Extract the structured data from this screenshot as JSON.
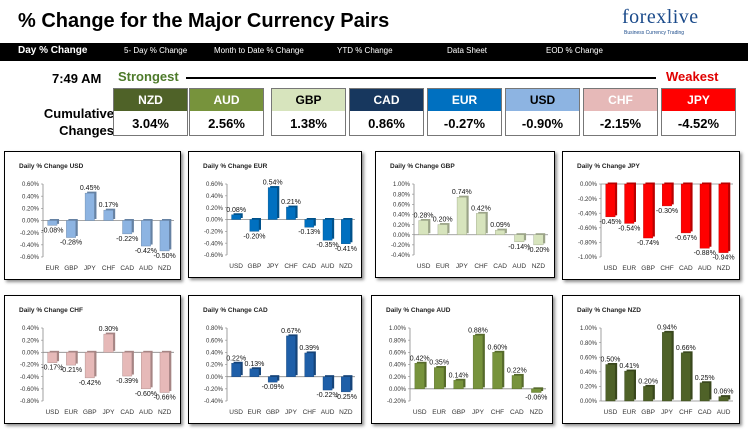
{
  "header": {
    "title": "% Change for the Major Currency Pairs",
    "logo": "forexlive",
    "logo_tagline": "Business Currency Trading"
  },
  "nav": {
    "items": [
      "Day % Change",
      "5- Day % Change",
      "Month to Date % Change",
      "YTD % Change",
      "Data Sheet",
      "EOD % Change"
    ]
  },
  "summary": {
    "time": "7:49 AM",
    "strongest_label": "Strongest",
    "weakest_label": "Weakest",
    "cumulative_label_1": "Cumulative",
    "cumulative_label_2": "Changes",
    "tiles": [
      {
        "currency": "NZD",
        "value": "3.04%",
        "color": "#4f6228",
        "text_color": "#ffffff"
      },
      {
        "currency": "AUD",
        "value": "2.56%",
        "color": "#77933c",
        "text_color": "#ffffff"
      },
      {
        "currency": "GBP",
        "value": "1.38%",
        "color": "#d7e4bd",
        "text_color": "#000000"
      },
      {
        "currency": "CAD",
        "value": "0.86%",
        "color": "#17375e",
        "text_color": "#ffffff"
      },
      {
        "currency": "EUR",
        "value": "-0.27%",
        "color": "#0070c0",
        "text_color": "#ffffff"
      },
      {
        "currency": "USD",
        "value": "-0.90%",
        "color": "#8db4e2",
        "text_color": "#000000"
      },
      {
        "currency": "CHF",
        "value": "-2.15%",
        "color": "#e6b9b8",
        "text_color": "#ffffff"
      },
      {
        "currency": "JPY",
        "value": "-4.52%",
        "color": "#ff0000",
        "text_color": "#ffffff"
      }
    ]
  },
  "chart_data": [
    {
      "type": "bar",
      "title": "Daily % Change USD",
      "categories": [
        "EUR",
        "GBP",
        "JPY",
        "CHF",
        "CAD",
        "AUD",
        "NZD"
      ],
      "values": [
        -0.08,
        -0.28,
        0.45,
        0.17,
        -0.22,
        -0.42,
        -0.5
      ],
      "labels": [
        "-0.08%",
        "-0.28%",
        "0.45%",
        "0.17%",
        "-0.22%",
        "-0.42%",
        "-0.50%"
      ],
      "ylim": [
        -0.6,
        0.6
      ],
      "ticks": [
        "0.60%",
        "0.40%",
        "0.20%",
        "0.00%",
        "-0.20%",
        "-0.40%",
        "-0.60%"
      ],
      "color": "#8db4e2",
      "grid": false
    },
    {
      "type": "bar",
      "title": "Daily % Change EUR",
      "categories": [
        "USD",
        "GBP",
        "JPY",
        "CHF",
        "CAD",
        "AUD",
        "NZD"
      ],
      "values": [
        0.08,
        -0.2,
        0.54,
        0.21,
        -0.13,
        -0.35,
        -0.41
      ],
      "labels": [
        "0.08%",
        "-0.20%",
        "0.54%",
        "0.21%",
        "-0.13%",
        "-0.35%",
        "-0.41%"
      ],
      "ylim": [
        -0.6,
        0.6
      ],
      "ticks": [
        "0.60%",
        "0.40%",
        "0.20%",
        "0.00%",
        "-0.20%",
        "-0.40%",
        "-0.60%"
      ],
      "color": "#0070c0",
      "grid": false
    },
    {
      "type": "bar",
      "title": "Daily % Change GBP",
      "categories": [
        "USD",
        "EUR",
        "JPY",
        "CHF",
        "CAD",
        "AUD",
        "NZD"
      ],
      "values": [
        0.28,
        0.2,
        0.74,
        0.42,
        0.09,
        -0.14,
        -0.2
      ],
      "labels": [
        "0.28%",
        "0.20%",
        "0.74%",
        "0.42%",
        "0.09%",
        "-0.14%",
        "-0.20%"
      ],
      "ylim": [
        -0.4,
        1.0
      ],
      "ticks": [
        "1.00%",
        "0.80%",
        "0.60%",
        "0.40%",
        "0.20%",
        "0.00%",
        "-0.20%",
        "-0.40%"
      ],
      "color": "#d7e4bd",
      "grid": false
    },
    {
      "type": "bar",
      "title": "Daily % Change JPY",
      "categories": [
        "USD",
        "EUR",
        "GBP",
        "CHF",
        "CAD",
        "AUD",
        "NZD"
      ],
      "values": [
        -0.45,
        -0.54,
        -0.74,
        -0.3,
        -0.67,
        -0.88,
        -0.94
      ],
      "labels": [
        "-0.45%",
        "-0.54%",
        "-0.74%",
        "-0.30%",
        "-0.67%",
        "-0.88%",
        "-0.94%"
      ],
      "ylim": [
        -1.0,
        0.0
      ],
      "ticks": [
        "0.00%",
        "-0.20%",
        "-0.40%",
        "-0.60%",
        "-0.80%",
        "-1.00%"
      ],
      "color": "#ff0000",
      "grid": false
    },
    {
      "type": "bar",
      "title": "Daily % Change CHF",
      "categories": [
        "USD",
        "EUR",
        "GBP",
        "JPY",
        "CAD",
        "AUD",
        "NZD"
      ],
      "values": [
        -0.17,
        -0.21,
        -0.42,
        0.3,
        -0.39,
        -0.6,
        -0.66
      ],
      "labels": [
        "-0.17%",
        "-0.21%",
        "-0.42%",
        "0.30%",
        "-0.39%",
        "-0.60%",
        "-0.66%"
      ],
      "ylim": [
        -0.8,
        0.4
      ],
      "ticks": [
        "0.40%",
        "0.20%",
        "0.00%",
        "-0.20%",
        "-0.40%",
        "-0.60%",
        "-0.80%"
      ],
      "color": "#e6b9b8",
      "grid": false
    },
    {
      "type": "bar",
      "title": "Daily % Change CAD",
      "categories": [
        "USD",
        "EUR",
        "GBP",
        "JPY",
        "CHF",
        "AUD",
        "NZD"
      ],
      "values": [
        0.22,
        0.13,
        -0.09,
        0.67,
        0.39,
        -0.22,
        -0.25
      ],
      "labels": [
        "0.22%",
        "0.13%",
        "-0.09%",
        "0.67%",
        "0.39%",
        "-0.22%",
        "-0.25%"
      ],
      "ylim": [
        -0.4,
        0.8
      ],
      "ticks": [
        "0.80%",
        "0.60%",
        "0.40%",
        "0.20%",
        "0.00%",
        "-0.20%",
        "-0.40%"
      ],
      "color": "#1f5fa8",
      "grid": false
    },
    {
      "type": "bar",
      "title": "Daily % Change AUD",
      "categories": [
        "USD",
        "EUR",
        "GBP",
        "JPY",
        "CHF",
        "CAD",
        "NZD"
      ],
      "values": [
        0.42,
        0.35,
        0.14,
        0.88,
        0.6,
        0.22,
        -0.06
      ],
      "labels": [
        "0.42%",
        "0.35%",
        "0.14%",
        "0.88%",
        "0.60%",
        "0.22%",
        "-0.06%"
      ],
      "ylim": [
        -0.2,
        1.0
      ],
      "ticks": [
        "1.00%",
        "0.80%",
        "0.60%",
        "0.40%",
        "0.20%",
        "0.00%",
        "-0.20%"
      ],
      "color": "#77933c",
      "grid": false
    },
    {
      "type": "bar",
      "title": "Daily % Change NZD",
      "categories": [
        "USD",
        "EUR",
        "GBP",
        "JPY",
        "CHF",
        "CAD",
        "AUD"
      ],
      "values": [
        0.5,
        0.41,
        0.2,
        0.94,
        0.66,
        0.25,
        0.06
      ],
      "labels": [
        "0.50%",
        "0.41%",
        "0.20%",
        "0.94%",
        "0.66%",
        "0.25%",
        "0.06%"
      ],
      "ylim": [
        0.0,
        1.0
      ],
      "ticks": [
        "1.00%",
        "0.80%",
        "0.60%",
        "0.40%",
        "0.20%",
        "0.00%"
      ],
      "color": "#4f6228",
      "grid": false
    }
  ]
}
